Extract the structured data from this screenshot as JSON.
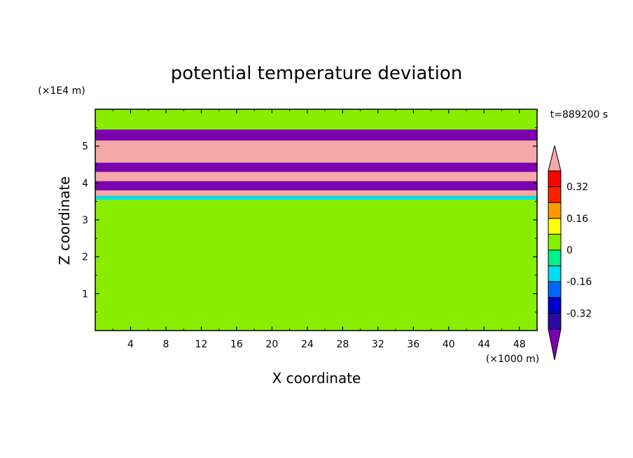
{
  "chart_data": {
    "type": "heatmap",
    "title": "potential temperature deviation",
    "xlabel": "X coordinate",
    "ylabel": "Z coordinate",
    "x_unit": "(×1000 m)",
    "y_unit": "(×1E4 m)",
    "time_label": "t=889200 s",
    "xlim": [
      0,
      50
    ],
    "ylim": [
      0,
      6
    ],
    "x_ticks": [
      4,
      8,
      12,
      16,
      20,
      24,
      28,
      32,
      36,
      40,
      44,
      48
    ],
    "y_ticks": [
      1,
      2,
      3,
      4,
      5
    ],
    "colorbar": {
      "levels": [
        -0.4,
        -0.32,
        -0.24,
        -0.16,
        -0.08,
        0,
        0.08,
        0.16,
        0.24,
        0.32,
        0.4
      ],
      "labels": [
        "0.32",
        "0.16",
        "0",
        "-0.16",
        "-0.32"
      ],
      "label_values": [
        0.32,
        0.16,
        0,
        -0.16,
        -0.32
      ],
      "colors": [
        "#7b00b0",
        "#2a0aa0",
        "#0000cc",
        "#0066ff",
        "#00ddee",
        "#00ee88",
        "#88ee00",
        "#ffff00",
        "#ff9900",
        "#ff2200",
        "#ff0000",
        "#f4a8a8"
      ],
      "extend": "both"
    },
    "bands": [
      {
        "y": [
          5.45,
          6.0
        ],
        "value": 0.0
      },
      {
        "y": [
          5.15,
          5.45
        ],
        "value": -0.44
      },
      {
        "y": [
          4.95,
          5.15
        ],
        "value": 0.44
      },
      {
        "y": [
          4.55,
          4.95
        ],
        "value": 0.44
      },
      {
        "y": [
          4.3,
          4.55
        ],
        "value": -0.44
      },
      {
        "y": [
          4.05,
          4.3
        ],
        "value": 0.44
      },
      {
        "y": [
          3.8,
          4.05
        ],
        "value": -0.44
      },
      {
        "y": [
          3.65,
          3.8
        ],
        "value": 0.44
      },
      {
        "y": [
          3.55,
          3.65
        ],
        "value": -0.16
      },
      {
        "y": [
          0.75,
          3.55
        ],
        "value": 0.04
      },
      {
        "y": [
          0.0,
          0.75
        ],
        "value": 0.06
      }
    ]
  }
}
